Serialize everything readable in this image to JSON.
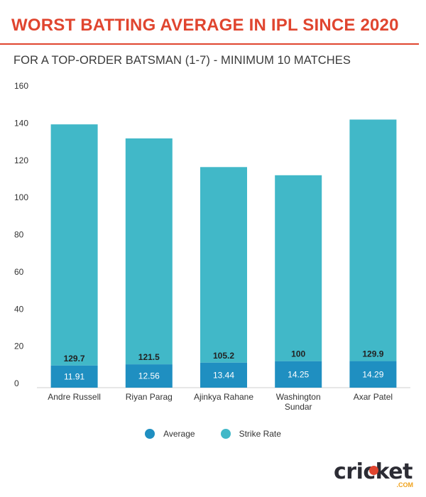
{
  "header": {
    "title": "WORST BATTING AVERAGE IN IPL SINCE 2020",
    "subtitle": "FOR A TOP-ORDER BATSMAN (1-7) - MINIMUM 10 MATCHES"
  },
  "colors": {
    "accent": "#e0452f",
    "average": "#1f8fc1",
    "strike_rate": "#41b8c8"
  },
  "chart_data": {
    "type": "bar",
    "stacked": true,
    "categories": [
      "Andre Russell",
      "Riyan Parag",
      "Ajinkya Rahane",
      "Washington Sundar",
      "Axar Patel"
    ],
    "series": [
      {
        "name": "Average",
        "values": [
          11.91,
          12.56,
          13.44,
          14.25,
          14.29
        ],
        "color": "#1f8fc1"
      },
      {
        "name": "Strike Rate",
        "values": [
          129.7,
          121.5,
          105.2,
          100,
          129.9
        ],
        "color": "#41b8c8"
      }
    ],
    "ylim": [
      0,
      160
    ],
    "yticks": [
      0,
      20,
      40,
      60,
      80,
      100,
      120,
      140,
      160
    ],
    "grid": false,
    "legend": "bottom"
  },
  "logo": {
    "text": "cricket",
    "suffix": ".COM"
  }
}
